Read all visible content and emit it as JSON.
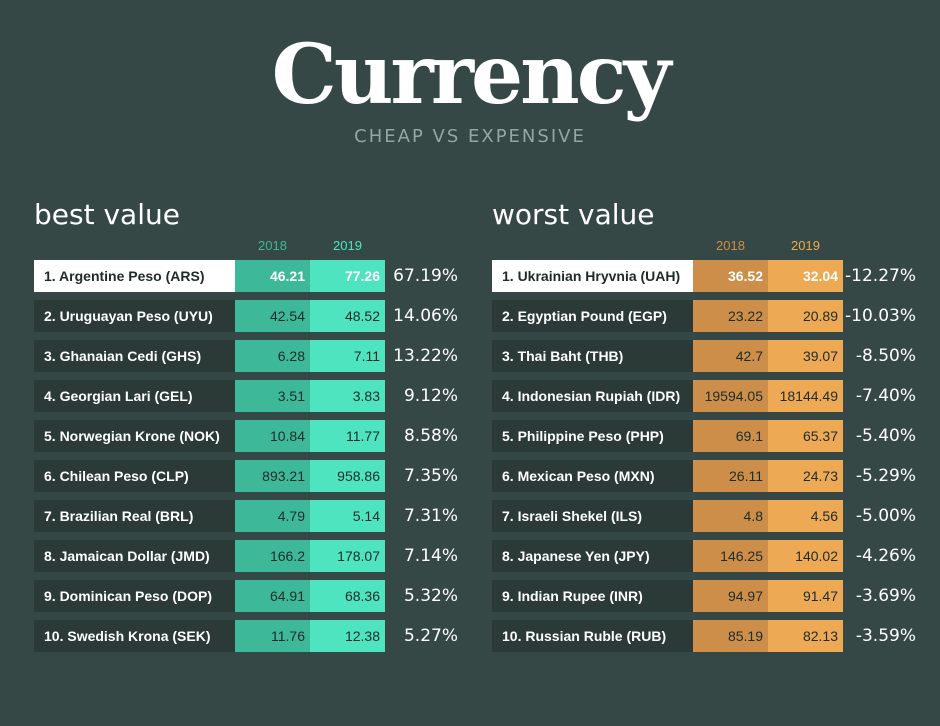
{
  "title": "Currency",
  "subtitle": "CHEAP VS EXPENSIVE",
  "colors": {
    "background": "#364845",
    "best_2018": "#3db99a",
    "best_2019": "#4ee4bf",
    "worst_2018": "#cc8e48",
    "worst_2019": "#eda953"
  },
  "chart_data": [
    {
      "type": "table",
      "title": "best value",
      "columns": [
        "2018",
        "2019"
      ],
      "rows": [
        {
          "name": "1. Argentine Peso (ARS)",
          "v2018": "46.21",
          "v2019": "77.26",
          "change": "67.19%"
        },
        {
          "name": "2. Uruguayan Peso (UYU)",
          "v2018": "42.54",
          "v2019": "48.52",
          "change": "14.06%"
        },
        {
          "name": "3. Ghanaian Cedi (GHS)",
          "v2018": "6.28",
          "v2019": "7.11",
          "change": "13.22%"
        },
        {
          "name": "4. Georgian Lari (GEL)",
          "v2018": "3.51",
          "v2019": "3.83",
          "change": "9.12%"
        },
        {
          "name": "5. Norwegian Krone (NOK)",
          "v2018": "10.84",
          "v2019": "11.77",
          "change": "8.58%"
        },
        {
          "name": "6. Chilean Peso (CLP)",
          "v2018": "893.21",
          "v2019": "958.86",
          "change": "7.35%"
        },
        {
          "name": "7. Brazilian Real (BRL)",
          "v2018": "4.79",
          "v2019": "5.14",
          "change": "7.31%"
        },
        {
          "name": "8. Jamaican Dollar (JMD)",
          "v2018": "166.2",
          "v2019": "178.07",
          "change": "7.14%"
        },
        {
          "name": "9. Dominican Peso (DOP)",
          "v2018": "64.91",
          "v2019": "68.36",
          "change": "5.32%"
        },
        {
          "name": "10. Swedish Krona (SEK)",
          "v2018": "11.76",
          "v2019": "12.38",
          "change": "5.27%"
        }
      ]
    },
    {
      "type": "table",
      "title": "worst value",
      "columns": [
        "2018",
        "2019"
      ],
      "rows": [
        {
          "name": "1. Ukrainian Hryvnia (UAH)",
          "v2018": "36.52",
          "v2019": "32.04",
          "change": "-12.27%"
        },
        {
          "name": "2. Egyptian Pound (EGP)",
          "v2018": "23.22",
          "v2019": "20.89",
          "change": "-10.03%"
        },
        {
          "name": "3. Thai Baht (THB)",
          "v2018": "42.7",
          "v2019": "39.07",
          "change": "-8.50%"
        },
        {
          "name": "4. Indonesian Rupiah (IDR)",
          "v2018": "19594.05",
          "v2019": "18144.49",
          "change": "-7.40%"
        },
        {
          "name": "5. Philippine Peso (PHP)",
          "v2018": "69.1",
          "v2019": "65.37",
          "change": "-5.40%"
        },
        {
          "name": "6. Mexican Peso (MXN)",
          "v2018": "26.11",
          "v2019": "24.73",
          "change": "-5.29%"
        },
        {
          "name": "7. Israeli Shekel (ILS)",
          "v2018": "4.8",
          "v2019": "4.56",
          "change": "-5.00%"
        },
        {
          "name": "8. Japanese Yen (JPY)",
          "v2018": "146.25",
          "v2019": "140.02",
          "change": "-4.26%"
        },
        {
          "name": "9. Indian Rupee  (INR)",
          "v2018": "94.97",
          "v2019": "91.47",
          "change": "-3.69%"
        },
        {
          "name": "10. Russian Ruble (RUB)",
          "v2018": "85.19",
          "v2019": "82.13",
          "change": "-3.59%"
        }
      ]
    }
  ]
}
